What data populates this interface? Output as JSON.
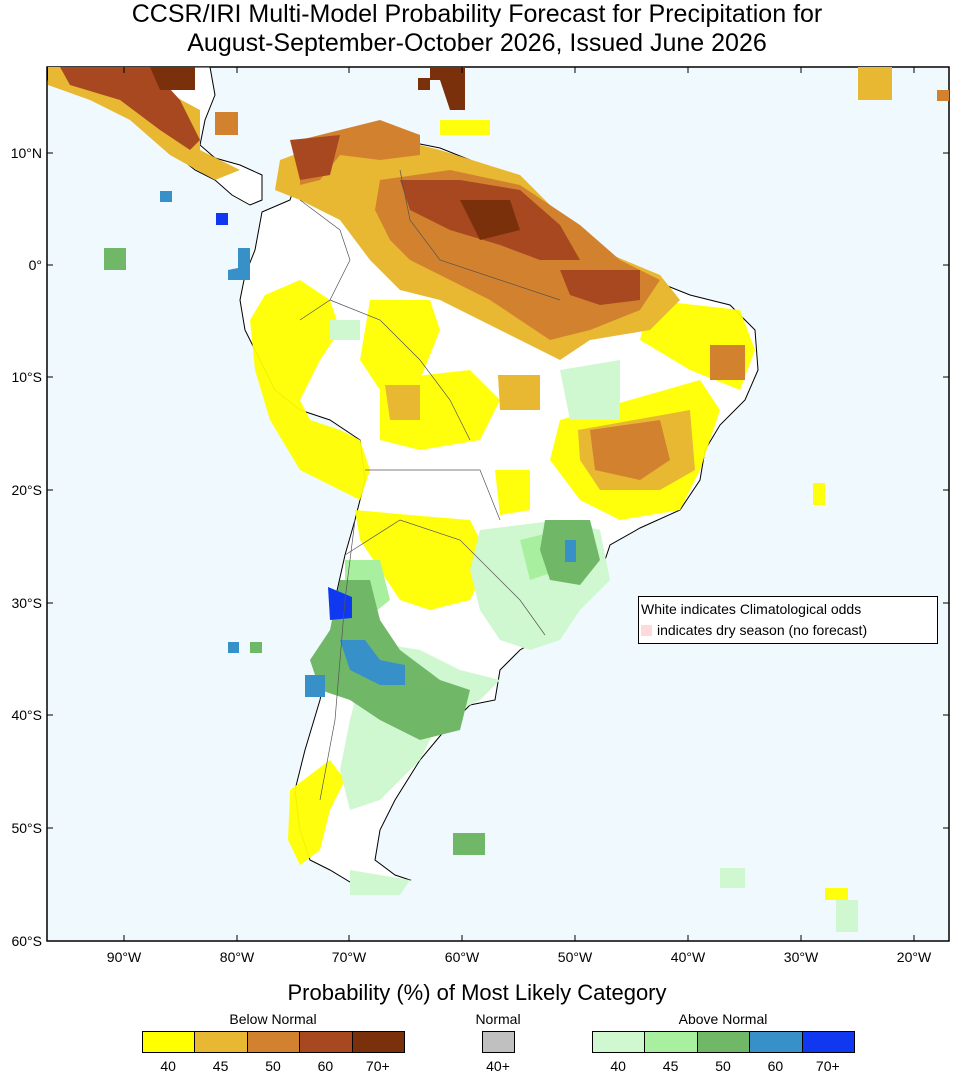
{
  "title_line1": "CCSR/IRI Multi-Model Probability Forecast for Precipitation for",
  "title_line2": "August-September-October 2026, Issued June 2026",
  "map": {
    "ocean_color": "#f0f9fd",
    "land_color": "#ffffff",
    "lat_labels": [
      "10°N",
      "0°",
      "10°S",
      "20°S",
      "30°S",
      "40°S",
      "50°S",
      "60°S"
    ],
    "lon_labels": [
      "90°W",
      "80°W",
      "70°W",
      "60°W",
      "50°W",
      "40°W",
      "30°W",
      "20°W"
    ]
  },
  "legend": {
    "line1": "White indicates Climatological odds",
    "line2": "indicates dry season (no forecast)"
  },
  "colorbar": {
    "title": "Probability (%) of Most Likely Category",
    "below_label": "Below Normal",
    "normal_label": "Normal",
    "above_label": "Above Normal",
    "below": [
      {
        "label": "40",
        "color": "#ffff00"
      },
      {
        "label": "45",
        "color": "#e8b832"
      },
      {
        "label": "50",
        "color": "#d2822e"
      },
      {
        "label": "60",
        "color": "#a84820"
      },
      {
        "label": "70+",
        "color": "#7a300a"
      }
    ],
    "normal": [
      {
        "label": "40+",
        "color": "#c0c0c0"
      }
    ],
    "above": [
      {
        "label": "40",
        "color": "#d0f8d0"
      },
      {
        "label": "45",
        "color": "#a8f0a0"
      },
      {
        "label": "50",
        "color": "#70b868"
      },
      {
        "label": "60",
        "color": "#3890c8"
      },
      {
        "label": "70+",
        "color": "#1038f0"
      }
    ]
  }
}
